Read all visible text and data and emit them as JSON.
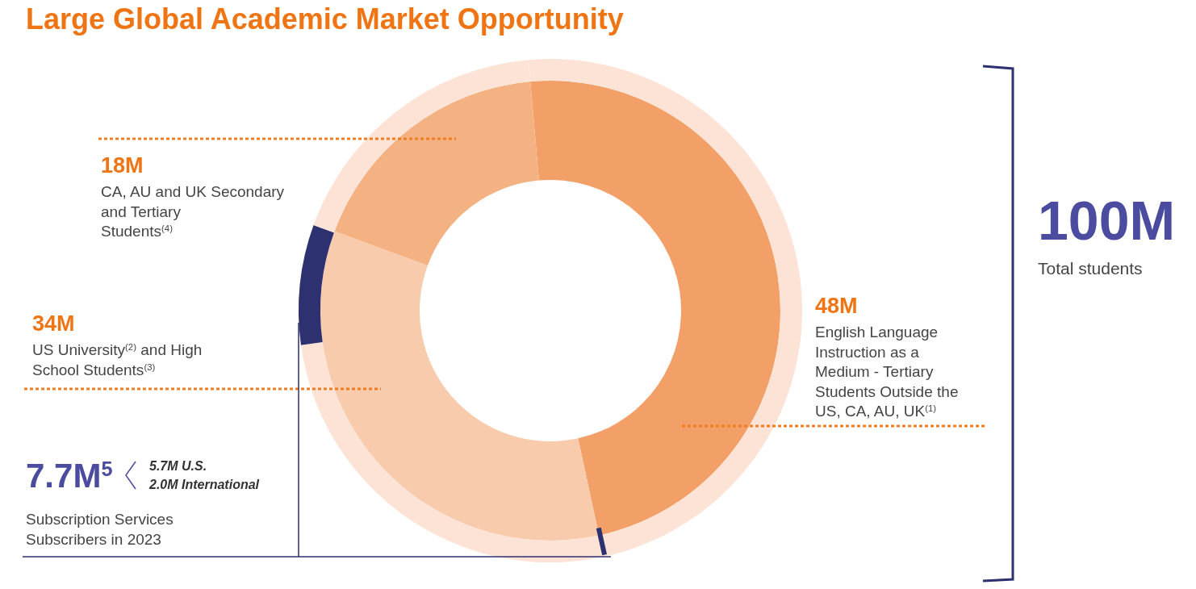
{
  "chart_data": {
    "type": "donut",
    "title": "Large Global Academic Market Opportunity",
    "categories": [
      "English Language Instruction as a Medium - Tertiary Students Outside the US, CA, AU, UK$^{(1)}$",
      "US University$^{(2)}$ and High School Students$^{(3)}$",
      "CA, AU and UK Secondary and Tertiary Students$^{(4)}$"
    ],
    "series": [
      {
        "values": [
          48,
          34,
          18
        ],
        "colors": [
          "#f2a068",
          "#f7cbab",
          "#f4b283"
        ],
        "value_labels": [
          "48M",
          "34M",
          "18M"
        ]
      },
      {
        "values": [
          74.2,
          7.7,
          18.1
        ],
        "colors": [
          "#fce3d6",
          "#2e3170",
          "#fce3d6"
        ]
      }
    ],
    "annotations": [
      "7.7M$^{5}$",
      "5.7M U.S.",
      "2.0M International",
      "Subscription Services Subscribers in 2023",
      "100M",
      "Total students"
    ]
  }
}
